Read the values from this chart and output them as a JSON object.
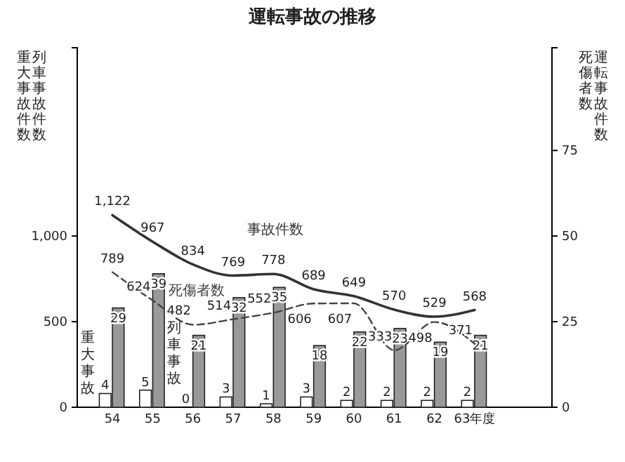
{
  "chart_data": {
    "type": "bar",
    "title": "運転事故の推移",
    "ylabel": "列車事故件数",
    "y2label": "運転事故件数",
    "annotations": [
      "重大事故件数",
      "死傷者数"
    ],
    "categories": [
      "54",
      "55",
      "56",
      "57",
      "58",
      "59",
      "60",
      "61",
      "62",
      "63年度"
    ],
    "series": [
      {
        "name": "重大事故",
        "axis": "y2",
        "color": "#ffffff",
        "values": [
          4,
          5,
          0,
          3,
          1,
          3,
          2,
          2,
          2,
          2
        ]
      },
      {
        "name": "列車事故",
        "axis": "y2",
        "color": "#999999",
        "values": [
          29,
          39,
          21,
          32,
          35,
          18,
          22,
          23,
          19,
          21
        ]
      },
      {
        "name": "事故件数",
        "type": "line",
        "color": "#333333",
        "line_style": "solid",
        "values": [
          1122,
          967,
          834,
          769,
          778,
          689,
          649,
          570,
          529,
          568
        ],
        "value_labels": [
          "1,122",
          "967",
          "834",
          "769",
          "778",
          "689",
          "649",
          "570",
          "529",
          "568"
        ]
      },
      {
        "name": "死傷者数",
        "type": "line",
        "color": "#444444",
        "line_style": "dashed",
        "values": [
          789,
          624,
          482,
          514,
          552,
          606,
          607,
          333,
          498,
          371
        ]
      }
    ],
    "ylim": [
      0,
      2100
    ],
    "yticks": [
      0,
      500,
      {
        "value": 1000,
        "label": "1,000"
      }
    ],
    "y2lim": [
      0,
      105
    ],
    "y2ticks": [
      0,
      25,
      50,
      75
    ],
    "data_labels": true,
    "legend": false,
    "grid": false,
    "marker": "none"
  }
}
